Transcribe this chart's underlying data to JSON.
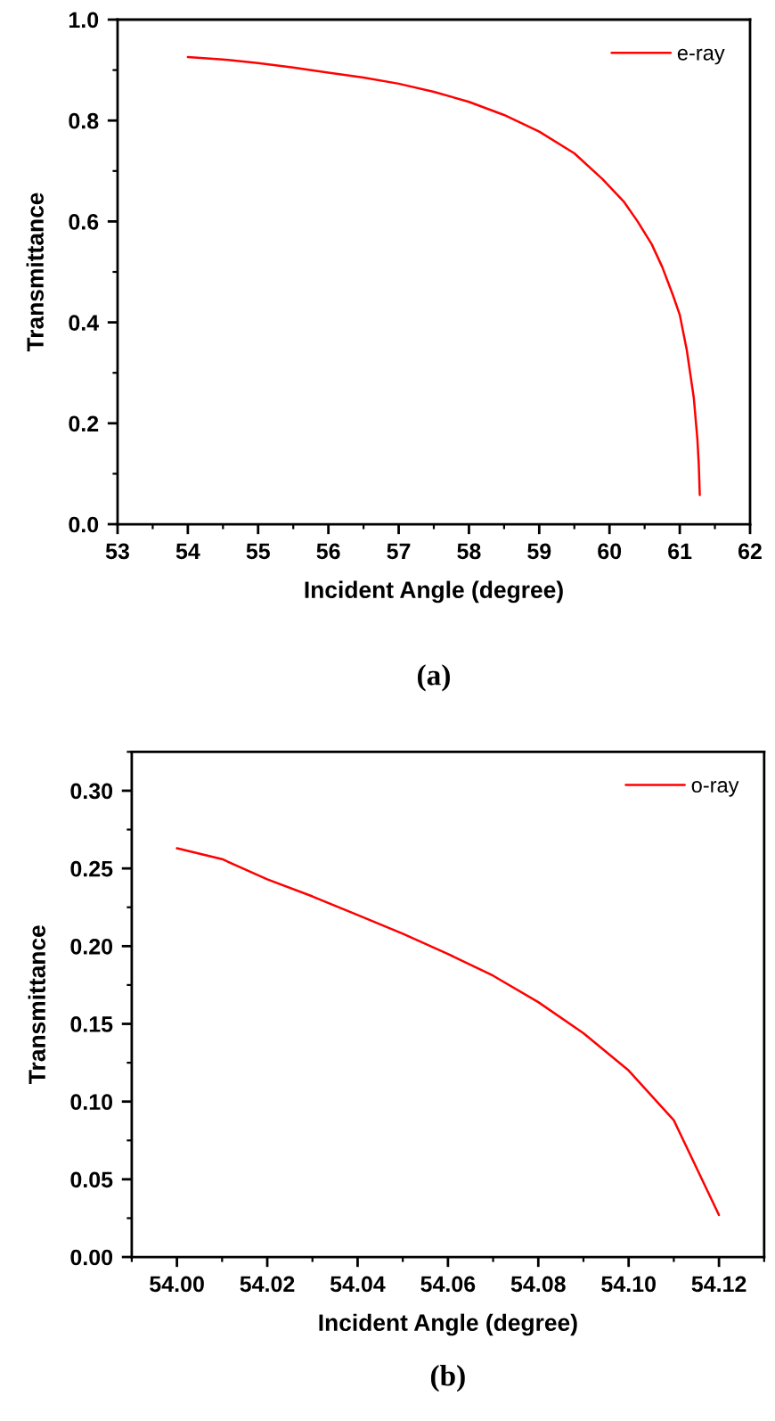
{
  "chart_data": [
    {
      "type": "line",
      "xlabel": "Incident Angle (degree)",
      "ylabel": "Transmittance",
      "annotations": [
        "(a)"
      ],
      "series": [
        {
          "name": "e-ray",
          "color": "#ff0000",
          "x": [
            54,
            54.5,
            55,
            55.5,
            56,
            56.5,
            57,
            57.5,
            58,
            58.5,
            59,
            59.5,
            59.9,
            60.2,
            60.4,
            60.6,
            60.75,
            60.9,
            61.0,
            61.1,
            61.2,
            61.25,
            61.27,
            61.285
          ],
          "values": [
            0.926,
            0.921,
            0.914,
            0.905,
            0.895,
            0.885,
            0.873,
            0.857,
            0.837,
            0.811,
            0.778,
            0.735,
            0.684,
            0.64,
            0.6,
            0.555,
            0.51,
            0.455,
            0.415,
            0.345,
            0.25,
            0.17,
            0.12,
            0.058
          ]
        }
      ],
      "xlim": [
        53,
        62
      ],
      "xticks": [
        53,
        54,
        55,
        56,
        57,
        58,
        59,
        60,
        61,
        62
      ],
      "ylim": [
        0,
        1
      ],
      "yticks": [
        {
          "value": 0,
          "label": "0.0"
        },
        {
          "value": 0.2,
          "label": "0.2"
        },
        {
          "value": 0.4,
          "label": "0.4"
        },
        {
          "value": 0.6,
          "label": "0.6"
        },
        {
          "value": 0.8,
          "label": "0.8"
        },
        {
          "value": 1,
          "label": "1.0"
        }
      ],
      "legend": "top right",
      "grid": false,
      "marker": "none",
      "line_style": "solid"
    },
    {
      "type": "line",
      "xlabel": "Incident Angle (degree)",
      "ylabel": "Transmittance",
      "annotations": [
        "(b)"
      ],
      "series": [
        {
          "name": "o-ray",
          "color": "#ff0000",
          "x": [
            54.0,
            54.01,
            54.02,
            54.03,
            54.04,
            54.05,
            54.06,
            54.07,
            54.08,
            54.09,
            54.1,
            54.11,
            54.12
          ],
          "values": [
            0.263,
            0.256,
            0.243,
            0.232,
            0.22,
            0.208,
            0.195,
            0.181,
            0.164,
            0.144,
            0.12,
            0.088,
            0.027
          ]
        }
      ],
      "xlim": [
        53.99,
        54.13
      ],
      "xticks": [
        {
          "value": 54.0,
          "label": "54.00"
        },
        {
          "value": 54.02,
          "label": "54.02"
        },
        {
          "value": 54.04,
          "label": "54.04"
        },
        {
          "value": 54.06,
          "label": "54.06"
        },
        {
          "value": 54.08,
          "label": "54.08"
        },
        {
          "value": 54.1,
          "label": "54.10"
        },
        {
          "value": 54.12,
          "label": "54.12"
        }
      ],
      "ylim": [
        0,
        0.325
      ],
      "yticks": [
        {
          "value": 0,
          "label": "0.00"
        },
        {
          "value": 0.05,
          "label": "0.05"
        },
        {
          "value": 0.1,
          "label": "0.10"
        },
        {
          "value": 0.15,
          "label": "0.15"
        },
        {
          "value": 0.2,
          "label": "0.20"
        },
        {
          "value": 0.25,
          "label": "0.25"
        },
        {
          "value": 0.3,
          "label": "0.30"
        }
      ],
      "legend": "top right",
      "grid": false,
      "marker": "none",
      "line_style": "solid"
    }
  ]
}
